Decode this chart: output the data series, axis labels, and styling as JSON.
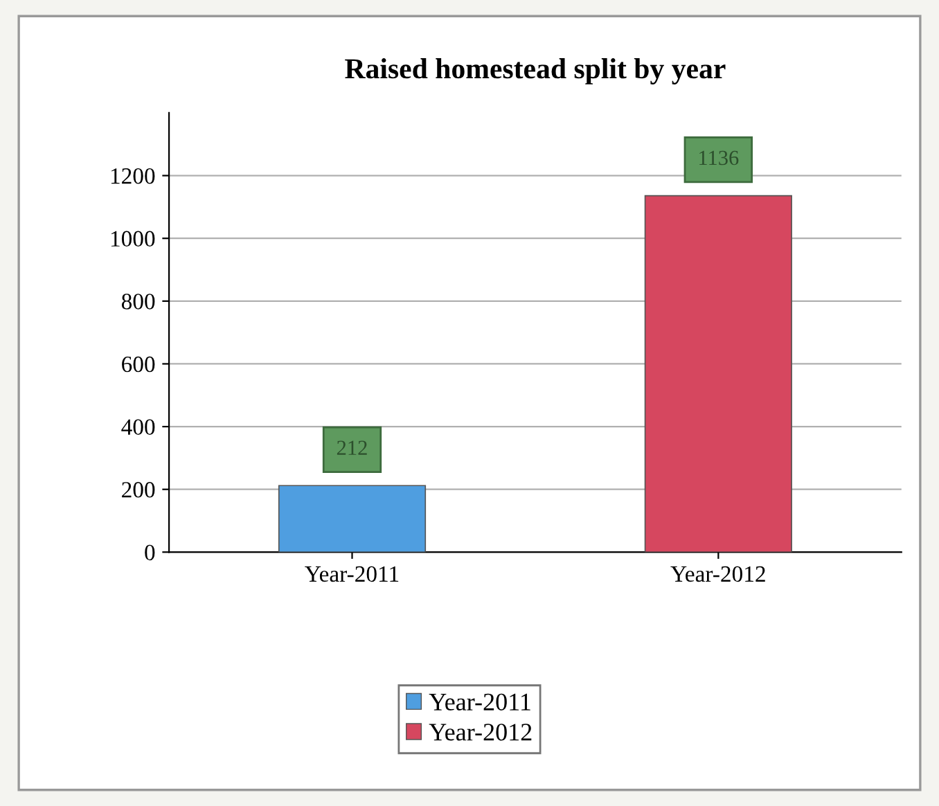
{
  "chart_data": {
    "type": "bar",
    "title": "Raised homestead split by year",
    "categories": [
      "Year-2011",
      "Year-2012"
    ],
    "series": [
      {
        "name": "Year-2011",
        "color": "#4f9ee0",
        "values": [
          212,
          null
        ]
      },
      {
        "name": "Year-2012",
        "color": "#d6475f",
        "values": [
          null,
          1136
        ]
      }
    ],
    "ylim": [
      0,
      1400
    ],
    "yticks": [
      0,
      200,
      400,
      600,
      800,
      1000,
      1200
    ],
    "grid": "y",
    "legend": "bottom",
    "data_labels": true
  }
}
